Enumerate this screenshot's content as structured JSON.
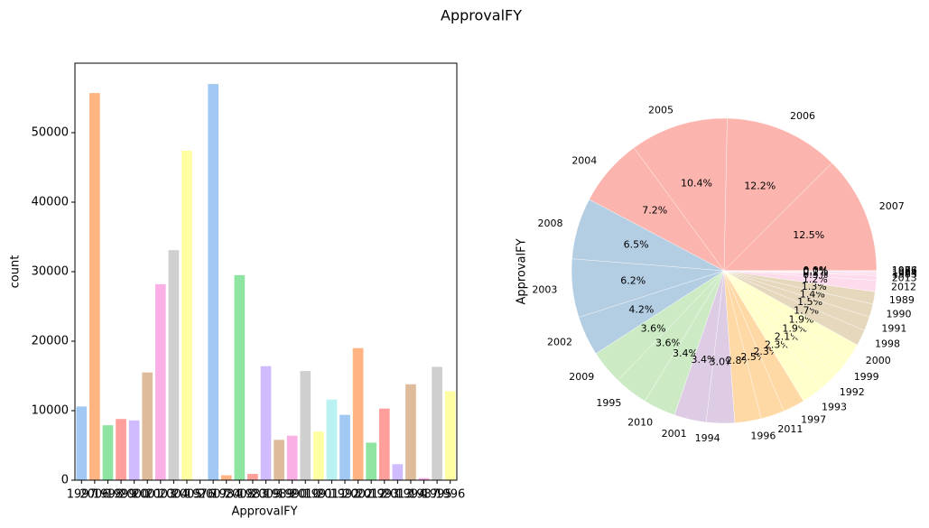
{
  "title": "ApprovalFY",
  "chart_data": [
    {
      "type": "bar",
      "xlabel": "ApprovalFY",
      "ylabel": "count",
      "categories": [
        "1997",
        "2006",
        "1998",
        "1999",
        "2000",
        "2001",
        "2003",
        "2004",
        "2005",
        "1976",
        "2007",
        "1984",
        "2008",
        "1983",
        "2009",
        "1989",
        "1990",
        "2010",
        "1991",
        "2011",
        "1992",
        "2002",
        "2012",
        "1993",
        "2013",
        "1994",
        "1987",
        "1995",
        "1996"
      ],
      "values": [
        10600,
        55700,
        7900,
        8800,
        8600,
        15500,
        28200,
        33100,
        47400,
        20,
        57000,
        700,
        29500,
        900,
        16400,
        5800,
        6400,
        15700,
        7000,
        11600,
        9400,
        19000,
        5400,
        10300,
        2300,
        13800,
        300,
        16300,
        12800
      ],
      "colors": [
        "#a1c9f4",
        "#ffb482",
        "#8de5a1",
        "#ff9f9b",
        "#d0bbff",
        "#debb9b",
        "#fab0e4",
        "#cfcfcf",
        "#fffea3",
        "#b9f2f0"
      ],
      "ylim": [
        0,
        60000
      ],
      "yticks": [
        0,
        10000,
        20000,
        30000,
        40000,
        50000
      ]
    },
    {
      "type": "pie",
      "ylabel": "ApprovalFY",
      "categories": [
        "2007",
        "2006",
        "2005",
        "2004",
        "2008",
        "2003",
        "2002",
        "2009",
        "1995",
        "2010",
        "2001",
        "1994",
        "1996",
        "2011",
        "1997",
        "1993",
        "1992",
        "1999",
        "2000",
        "1998",
        "1991",
        "1990",
        "1989",
        "2012",
        "2013",
        "1983",
        "1984",
        "1987",
        "1976"
      ],
      "values": [
        12.5,
        12.2,
        10.4,
        7.2,
        6.5,
        6.2,
        4.2,
        3.6,
        3.6,
        3.4,
        3.4,
        3.0,
        2.8,
        2.5,
        2.3,
        2.3,
        2.1,
        1.9,
        1.9,
        1.7,
        1.5,
        1.4,
        1.3,
        1.2,
        0.5,
        0.2,
        0.2,
        0.1,
        0.0
      ],
      "value_labels": [
        "12.5%",
        "12.2%",
        "10.4%",
        "7.2%",
        "6.5%",
        "6.2%",
        "4.2%",
        "3.6%",
        "3.6%",
        "3.4%",
        "3.4%",
        "3.0%",
        "2.8%",
        "2.5%",
        "2.3%",
        "2.3%",
        "2.1%",
        "1.9%",
        "1.9%",
        "1.7%",
        "1.5%",
        "1.4%",
        "1.3%",
        "1.2%",
        "0.5%",
        "0.2%",
        "0.2%",
        "0.1%",
        "0.0%"
      ],
      "colors": [
        "#fbb4ae",
        "#fbb4ae",
        "#fbb4ae",
        "#fbb4ae",
        "#b3cde3",
        "#b3cde3",
        "#b3cde3",
        "#ccebc5",
        "#ccebc5",
        "#ccebc5",
        "#decbe4",
        "#decbe4",
        "#fed9a6",
        "#fed9a6",
        "#fed9a6",
        "#ffffcc",
        "#ffffcc",
        "#ffffcc",
        "#ffffcc",
        "#e5d8bd",
        "#e5d8bd",
        "#e5d8bd",
        "#e5d8bd",
        "#fddaec",
        "#fddaec",
        "#fddaec",
        "#fddaec",
        "#fddaec",
        "#f2f2f2"
      ]
    }
  ]
}
